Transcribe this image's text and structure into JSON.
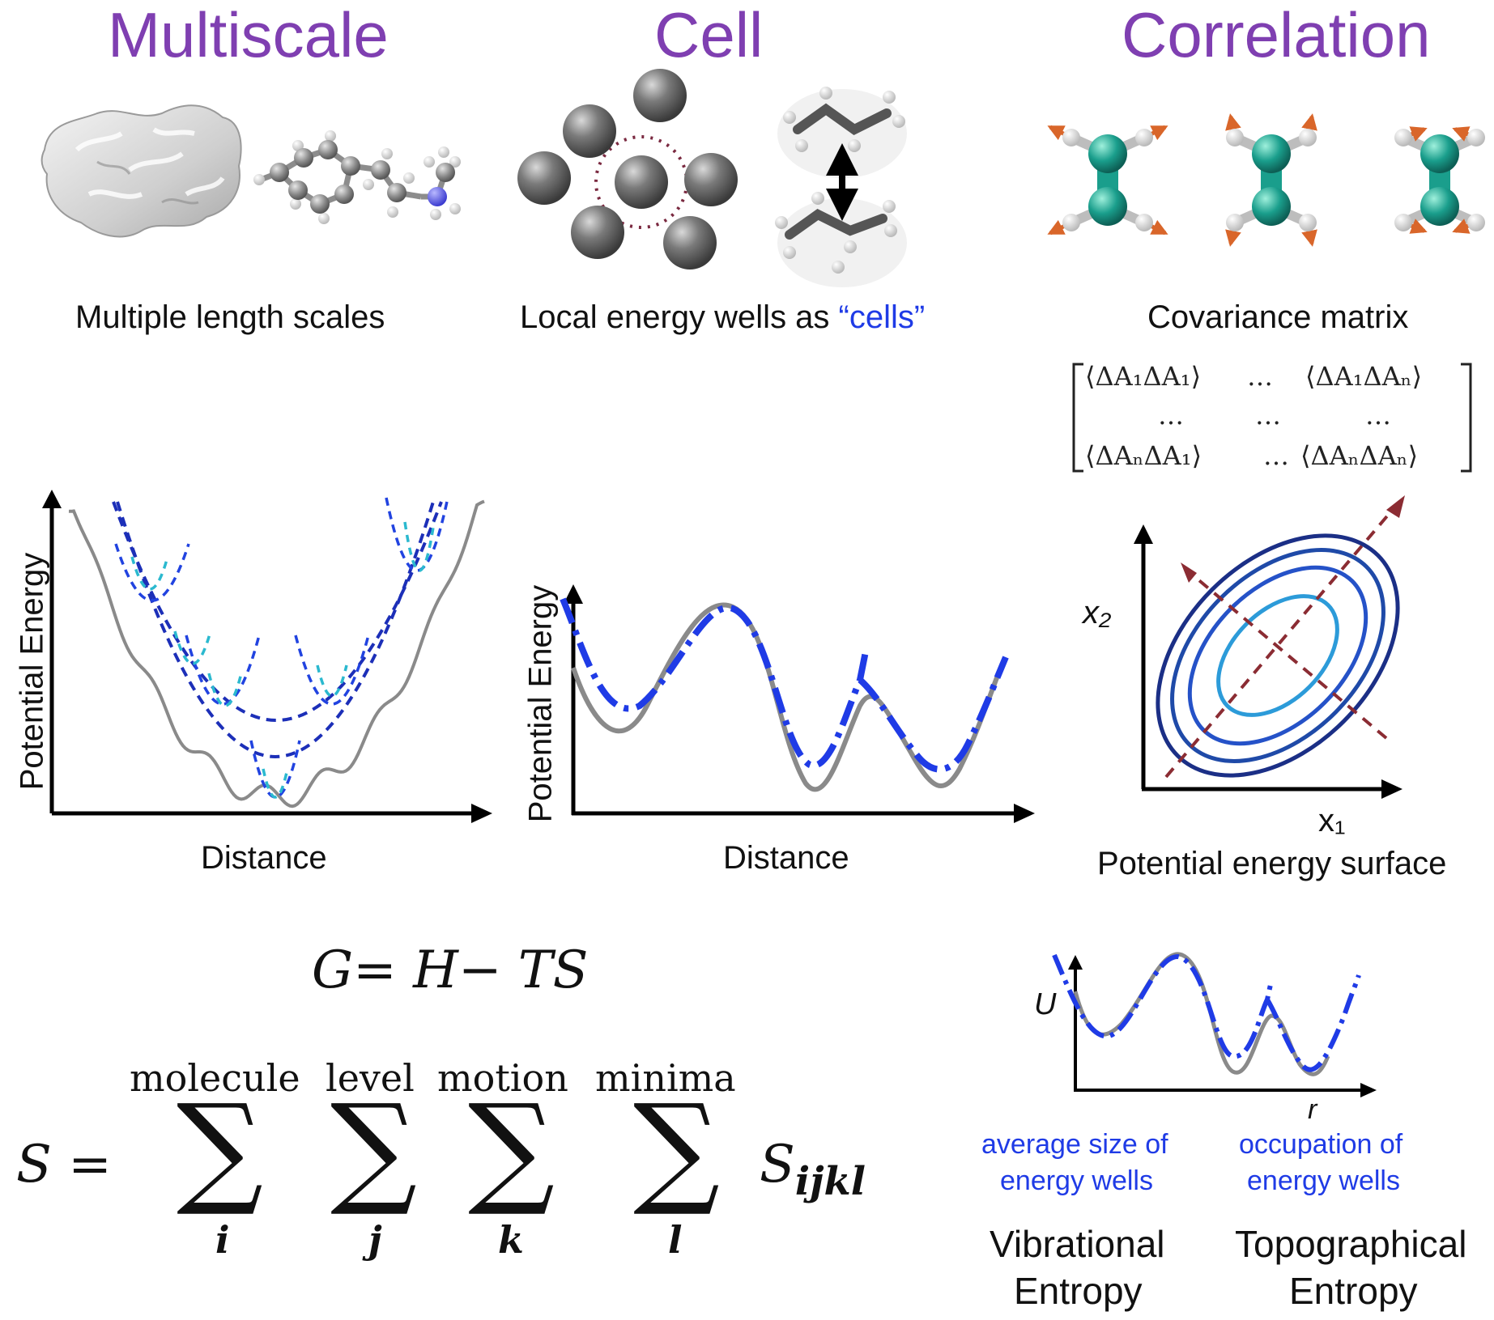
{
  "sections": {
    "multiscale": {
      "title": "Multiscale",
      "caption": "Multiple length scales",
      "plot_ylabel": "Potential Energy",
      "plot_xlabel": "Distance"
    },
    "cell": {
      "title": "Cell",
      "caption_prefix": "Local energy wells as ",
      "caption_highlight": "“cells”",
      "plot_ylabel": "Potential Energy",
      "plot_xlabel": "Distance"
    },
    "correlation": {
      "title": "Correlation",
      "caption": "Covariance matrix",
      "matrix": {
        "r1c1": "⟨ΔA₁ΔA₁⟩",
        "r1c2": "…",
        "r1c3": "⟨ΔA₁ΔAₙ⟩",
        "r2c1": "…",
        "r2c2": "…",
        "r2c3": "…",
        "r3c1": "⟨ΔAₙΔA₁⟩",
        "r3c2": "…",
        "r3c3": "⟨ΔAₙΔAₙ⟩"
      },
      "axis_x": "x₁",
      "axis_y": "x₂",
      "surface_caption": "Potential energy surface"
    }
  },
  "equations": {
    "gibbs": "G= H−  TS",
    "s_lhs": "S =",
    "sum_labels": [
      "molecule",
      "level",
      "motion",
      "minima"
    ],
    "sum_indices": [
      "i",
      "j",
      "k",
      "l"
    ],
    "sum_symbol": "∑",
    "s_term": "S",
    "s_sub": "ijkl"
  },
  "entropy": {
    "axis_u": "U",
    "axis_r": "r",
    "vib_note_1": "average size of",
    "vib_note_2": "energy wells",
    "topo_note_1": "occupation of",
    "topo_note_2": "energy wells",
    "vib_title_1": "Vibrational",
    "vib_title_2": "Entropy",
    "topo_title_1": "Topographical",
    "topo_title_2": "Entropy"
  },
  "colors": {
    "heading": "#7f3fb1",
    "highlight": "#1f3be6",
    "curve_gray": "#8a8a8a",
    "dash_blue": "#1f3be6",
    "dash_navy": "#1c2fb8",
    "dash_cyan": "#2bb9cf",
    "atom_gray": "#6f6f6f",
    "atom_teal": "#1a9e8c",
    "arrow_orange": "#d9662a",
    "ellipse_navy": "#1b2f86",
    "ellipse_mid": "#2552c8",
    "ellipse_light": "#2c9bd9",
    "axis_dash_red": "#8b2c33"
  }
}
